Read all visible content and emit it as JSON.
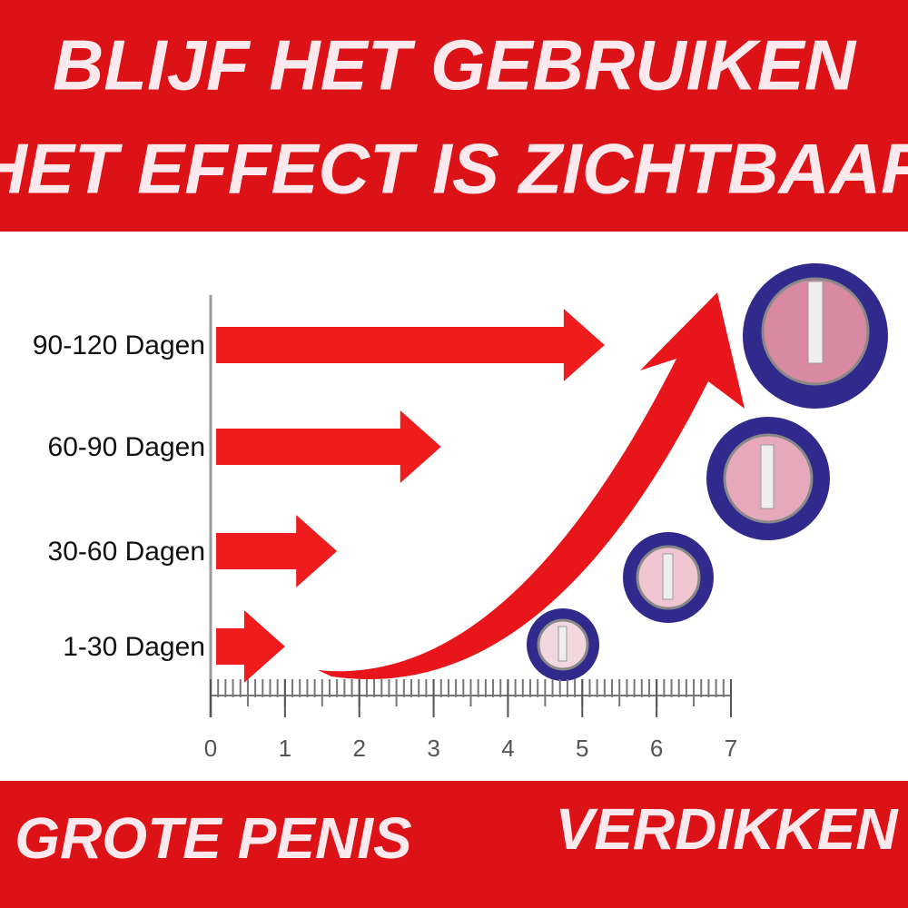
{
  "header": {
    "line1": "BLIJF HET GEBRUIKEN",
    "line2": "HET EFFECT IS ZICHTBAAR"
  },
  "footer": {
    "left": "GROTE PENIS",
    "right": "VERDIKKEN"
  },
  "chart_data": {
    "type": "bar",
    "orientation": "horizontal",
    "categories": [
      "90-120 Dagen",
      "60-90 Dagen",
      "30-60 Dagen",
      "1-30 Dagen"
    ],
    "values": [
      5.3,
      3.1,
      1.7,
      1.0
    ],
    "color": "#ee1c1c",
    "xlim": [
      0,
      7
    ],
    "xticks": [
      0,
      1,
      2,
      3,
      4,
      5,
      6,
      7
    ]
  }
}
